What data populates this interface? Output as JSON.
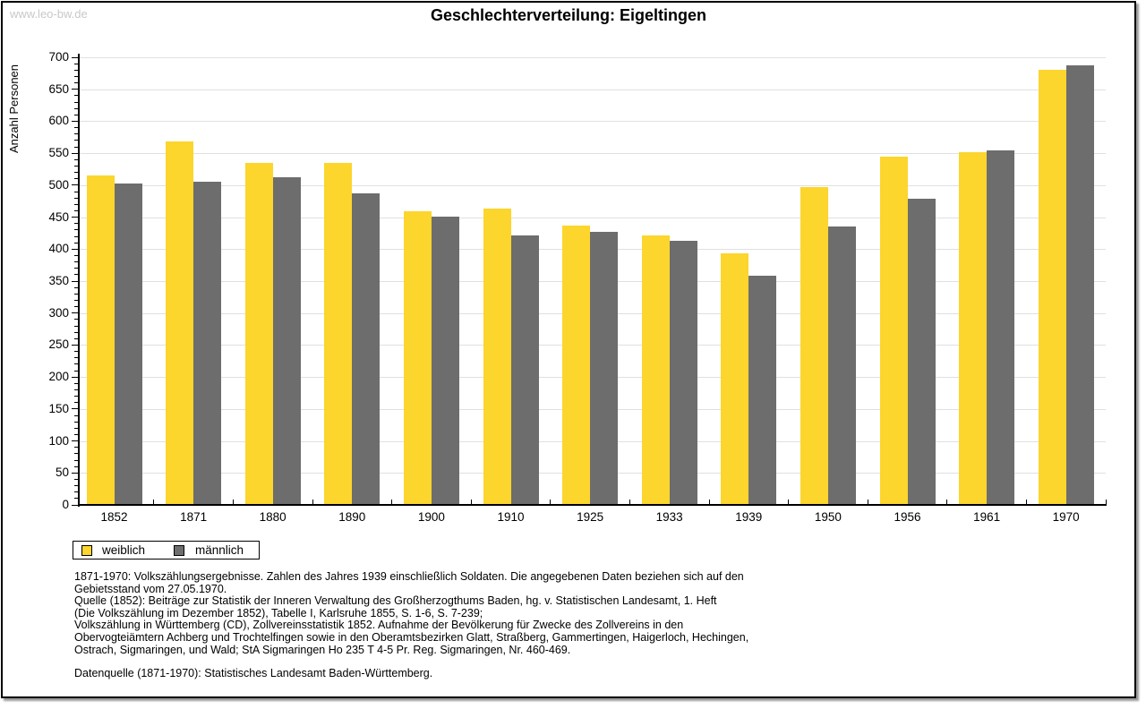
{
  "watermark": "www.leo-bw.de",
  "title": "Geschlechterverteilung: Eigeltingen",
  "y_axis_title": "Anzahl Personen",
  "legend": [
    {
      "label": "weiblich",
      "color": "#FCD52D"
    },
    {
      "label": "männlich",
      "color": "#6D6D6D"
    }
  ],
  "chart_data": {
    "type": "bar",
    "title": "Geschlechterverteilung: Eigeltingen",
    "xlabel": "",
    "ylabel": "Anzahl Personen",
    "categories": [
      "1852",
      "1871",
      "1880",
      "1890",
      "1900",
      "1910",
      "1925",
      "1933",
      "1939",
      "1950",
      "1956",
      "1961",
      "1970"
    ],
    "series": [
      {
        "name": "weiblich",
        "color": "#FCD52D",
        "values": [
          515,
          568,
          535,
          535,
          459,
          463,
          437,
          422,
          393,
          497,
          544,
          552,
          681
        ]
      },
      {
        "name": "männlich",
        "color": "#6D6D6D",
        "values": [
          502,
          506,
          512,
          487,
          451,
          421,
          427,
          413,
          358,
          435,
          479,
          554,
          687
        ]
      }
    ],
    "ylim": [
      0,
      700
    ],
    "ytick_step": 50,
    "y_minor_tick_step": 10,
    "grid": true,
    "gridline_color": "#e0e0e0",
    "legend_position": "bottom-left"
  },
  "footer": {
    "lines": [
      "1871-1970: Volkszählungsergebnisse. Zahlen des Jahres 1939 einschließlich Soldaten. Die angegebenen Daten beziehen sich auf den",
      "Gebietsstand vom 27.05.1970.",
      "Quelle (1852): Beiträge zur Statistik der Inneren Verwaltung des Großherzogthums Baden, hg. v. Statistischen Landesamt, 1. Heft",
      "(Die Volkszählung im Dezember 1852), Tabelle I, Karlsruhe 1855, S. 1-6, S. 7-239;",
      "Volkszählung in Württemberg (CD), Zollvereinsstatistik 1852. Aufnahme der Bevölkerung für Zwecke des Zollvereins in den",
      "Obervogteiämtern Achberg und Trochtelfingen sowie in den Oberamtsbezirken Glatt, Straßberg, Gammertingen, Haigerloch, Hechingen,",
      "Ostrach, Sigmaringen, und Wald; StA Sigmaringen Ho 235 T 4-5 Pr. Reg. Sigmaringen, Nr. 460-469."
    ],
    "source_line": "Datenquelle (1871-1970): Statistisches Landesamt Baden-Württemberg."
  }
}
